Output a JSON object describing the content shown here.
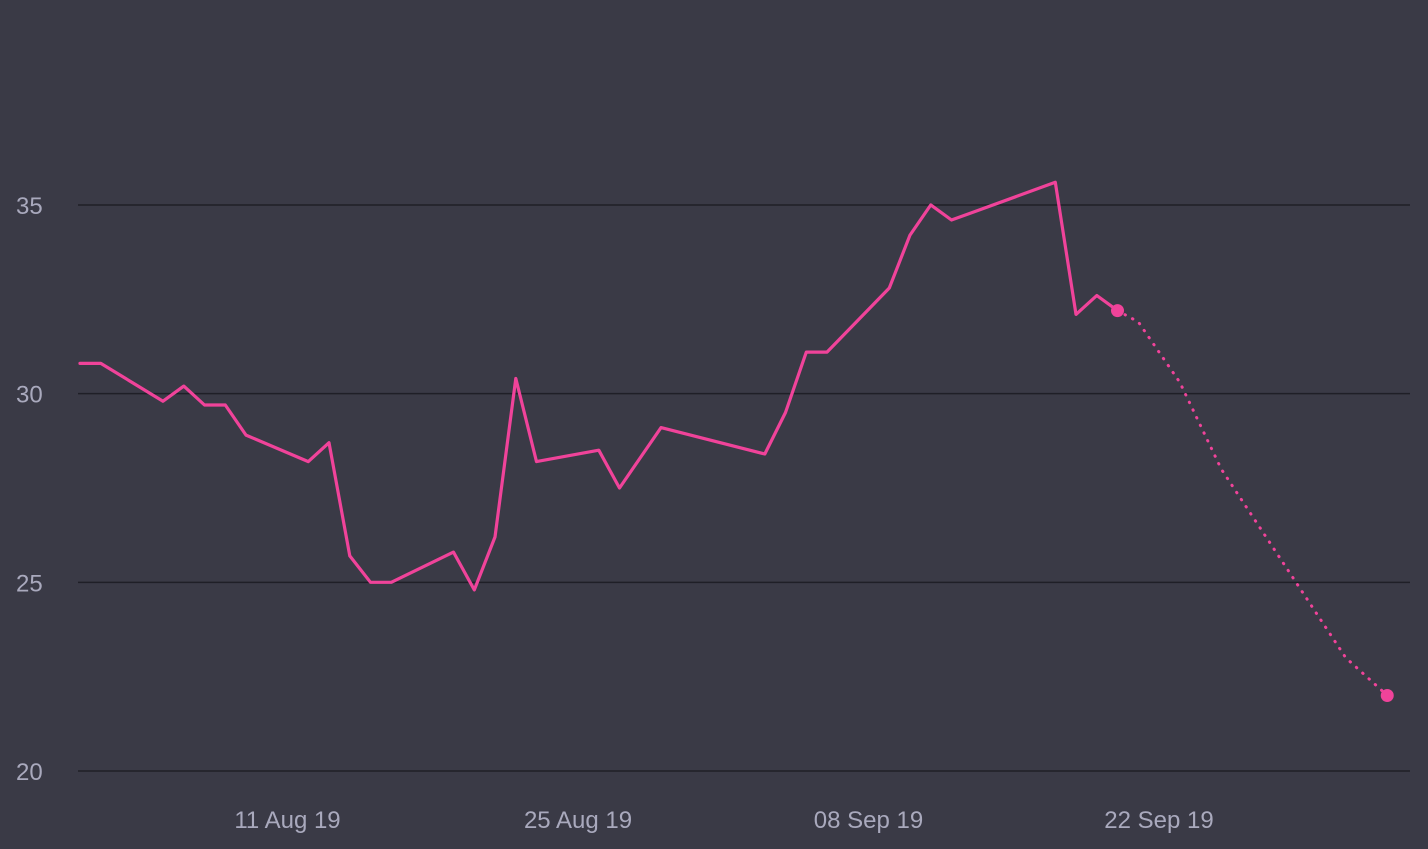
{
  "colors": {
    "background": "#3a3a46",
    "line": "#f0439a",
    "grid": "#1f1f27",
    "tick_text": "#a9a9bd"
  },
  "chart_data": {
    "type": "line",
    "title": "",
    "xlabel": "",
    "ylabel": "",
    "ylim": [
      20,
      39
    ],
    "xlim": [
      "2019-08-01",
      "2019-10-04"
    ],
    "grid": true,
    "legend": "none",
    "y_ticks": [
      20,
      25,
      30,
      35
    ],
    "x_ticks": [
      {
        "date": "2019-08-11",
        "label": "11 Aug 19"
      },
      {
        "date": "2019-08-25",
        "label": "25 Aug 19"
      },
      {
        "date": "2019-09-08",
        "label": "08 Sep 19"
      },
      {
        "date": "2019-09-22",
        "label": "22 Sep 19"
      }
    ],
    "series": [
      {
        "style": "solid",
        "points": [
          [
            "2019-08-01",
            30.8
          ],
          [
            "2019-08-02",
            30.8
          ],
          [
            "2019-08-05",
            29.8
          ],
          [
            "2019-08-06",
            30.2
          ],
          [
            "2019-08-07",
            29.7
          ],
          [
            "2019-08-08",
            29.7
          ],
          [
            "2019-08-09",
            28.9
          ],
          [
            "2019-08-12",
            28.2
          ],
          [
            "2019-08-13",
            28.7
          ],
          [
            "2019-08-14",
            25.7
          ],
          [
            "2019-08-15",
            25.0
          ],
          [
            "2019-08-16",
            25.0
          ],
          [
            "2019-08-19",
            25.8
          ],
          [
            "2019-08-20",
            24.8
          ],
          [
            "2019-08-21",
            26.2
          ],
          [
            "2019-08-22",
            30.4
          ],
          [
            "2019-08-23",
            28.2
          ],
          [
            "2019-08-26",
            28.5
          ],
          [
            "2019-08-27",
            27.5
          ],
          [
            "2019-08-29",
            29.1
          ],
          [
            "2019-09-03",
            28.4
          ],
          [
            "2019-09-04",
            29.5
          ],
          [
            "2019-09-05",
            31.1
          ],
          [
            "2019-09-06",
            31.1
          ],
          [
            "2019-09-09",
            32.8
          ],
          [
            "2019-09-10",
            34.2
          ],
          [
            "2019-09-11",
            35.0
          ],
          [
            "2019-09-12",
            34.6
          ],
          [
            "2019-09-13",
            34.8
          ],
          [
            "2019-09-17",
            35.6
          ],
          [
            "2019-09-18",
            32.1
          ],
          [
            "2019-09-19",
            32.6
          ],
          [
            "2019-09-20",
            32.2
          ]
        ]
      },
      {
        "style": "dotted",
        "points": [
          [
            "2019-09-20",
            32.2
          ],
          [
            "2019-09-21",
            31.9
          ],
          [
            "2019-09-23",
            30.3
          ],
          [
            "2019-09-25",
            28.0
          ],
          [
            "2019-09-28",
            25.5
          ],
          [
            "2019-10-01",
            23.0
          ],
          [
            "2019-10-03",
            22.0
          ]
        ]
      }
    ],
    "markers": [
      [
        "2019-09-20",
        32.2
      ],
      [
        "2019-10-03",
        22.0
      ]
    ]
  }
}
